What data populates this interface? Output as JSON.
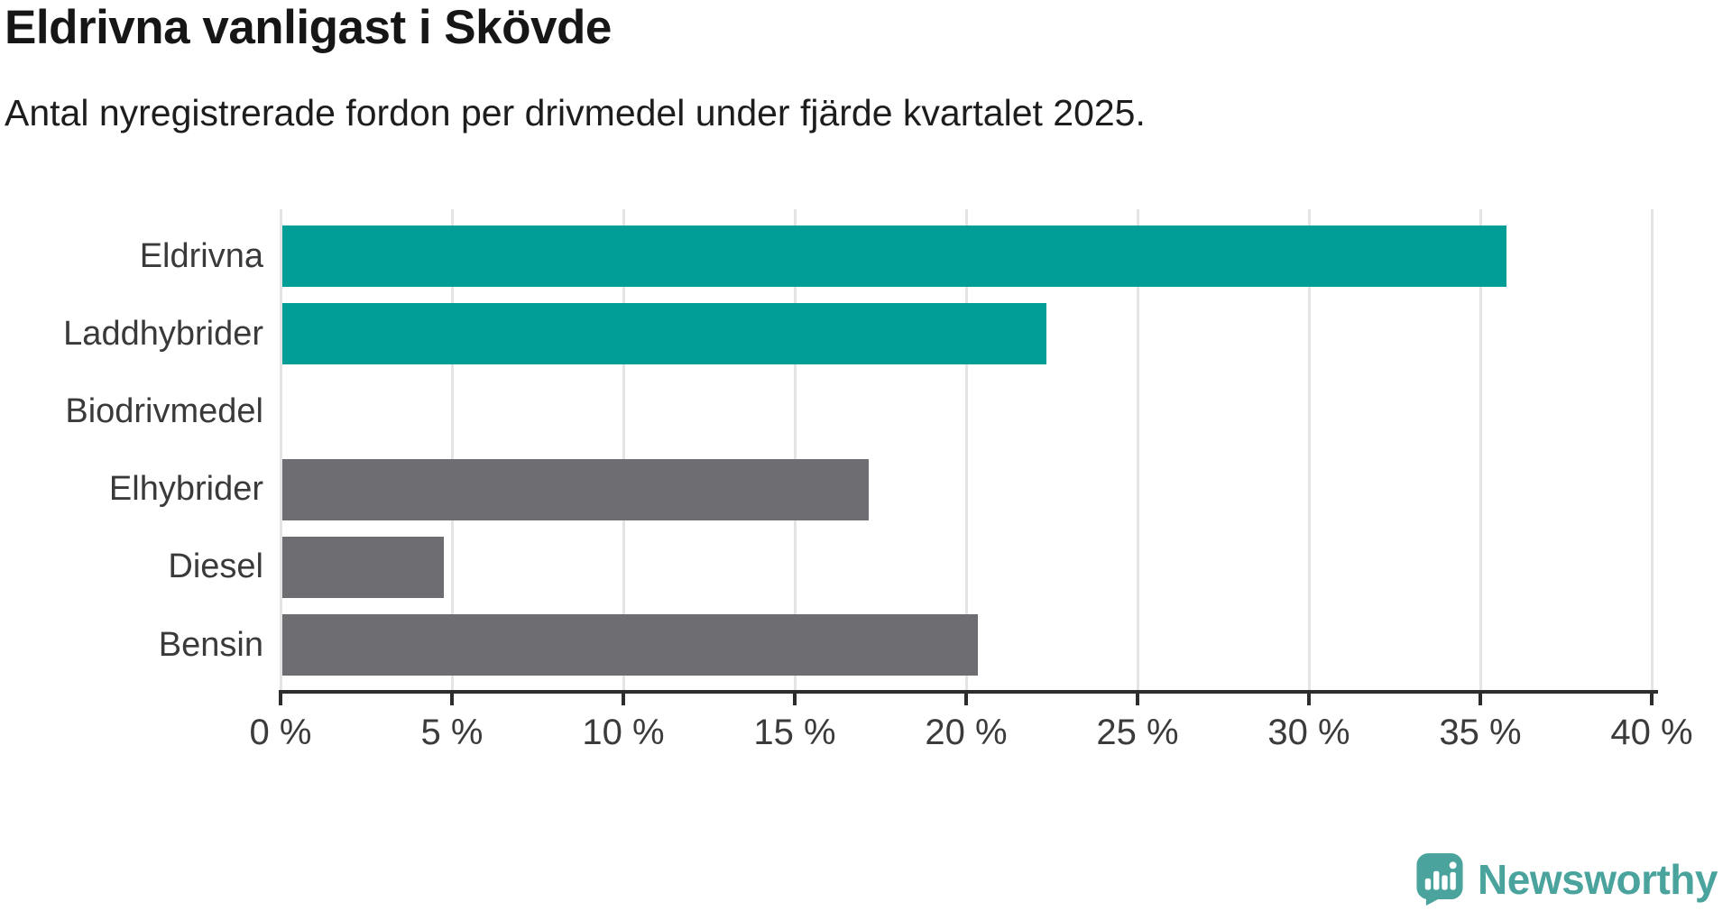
{
  "header": {
    "title": "Eldrivna vanligast i Skövde",
    "subtitle": "Antal nyregistrerade fordon per drivmedel under fjärde kvartalet 2025."
  },
  "chart_data": {
    "type": "bar",
    "orientation": "horizontal",
    "title": "Eldrivna vanligast i Skövde",
    "subtitle": "Antal nyregistrerade fordon per drivmedel under fjärde kvartalet 2025.",
    "categories": [
      "Eldrivna",
      "Laddhybrider",
      "Biodrivmedel",
      "Elhybrider",
      "Diesel",
      "Bensin"
    ],
    "values": [
      35.7,
      22.3,
      0,
      17.1,
      4.7,
      20.3
    ],
    "unit": "%",
    "bar_colors": [
      "#009e97",
      "#009e97",
      "#6d6d72",
      "#6d6d72",
      "#6d6d72",
      "#6d6d72"
    ],
    "highlight_color": "#009e97",
    "default_color": "#6d6d72",
    "xlim": [
      0,
      40
    ],
    "xtick_values": [
      0,
      5,
      10,
      15,
      20,
      25,
      30,
      35,
      40
    ],
    "xtick_labels": [
      "0 %",
      "5 %",
      "10 %",
      "15 %",
      "20 %",
      "25 %",
      "30 %",
      "35 %",
      "40 %"
    ],
    "grid": "vertical",
    "gridline_color": "#e4e4e4",
    "axis_color": "#2d2d2d",
    "label_color": "#3a3a3a"
  },
  "footer": {
    "brand": "Newsworthy",
    "brand_color": "#4aa49d",
    "logo_icon": "newsworthy-chart-bubble-icon"
  }
}
